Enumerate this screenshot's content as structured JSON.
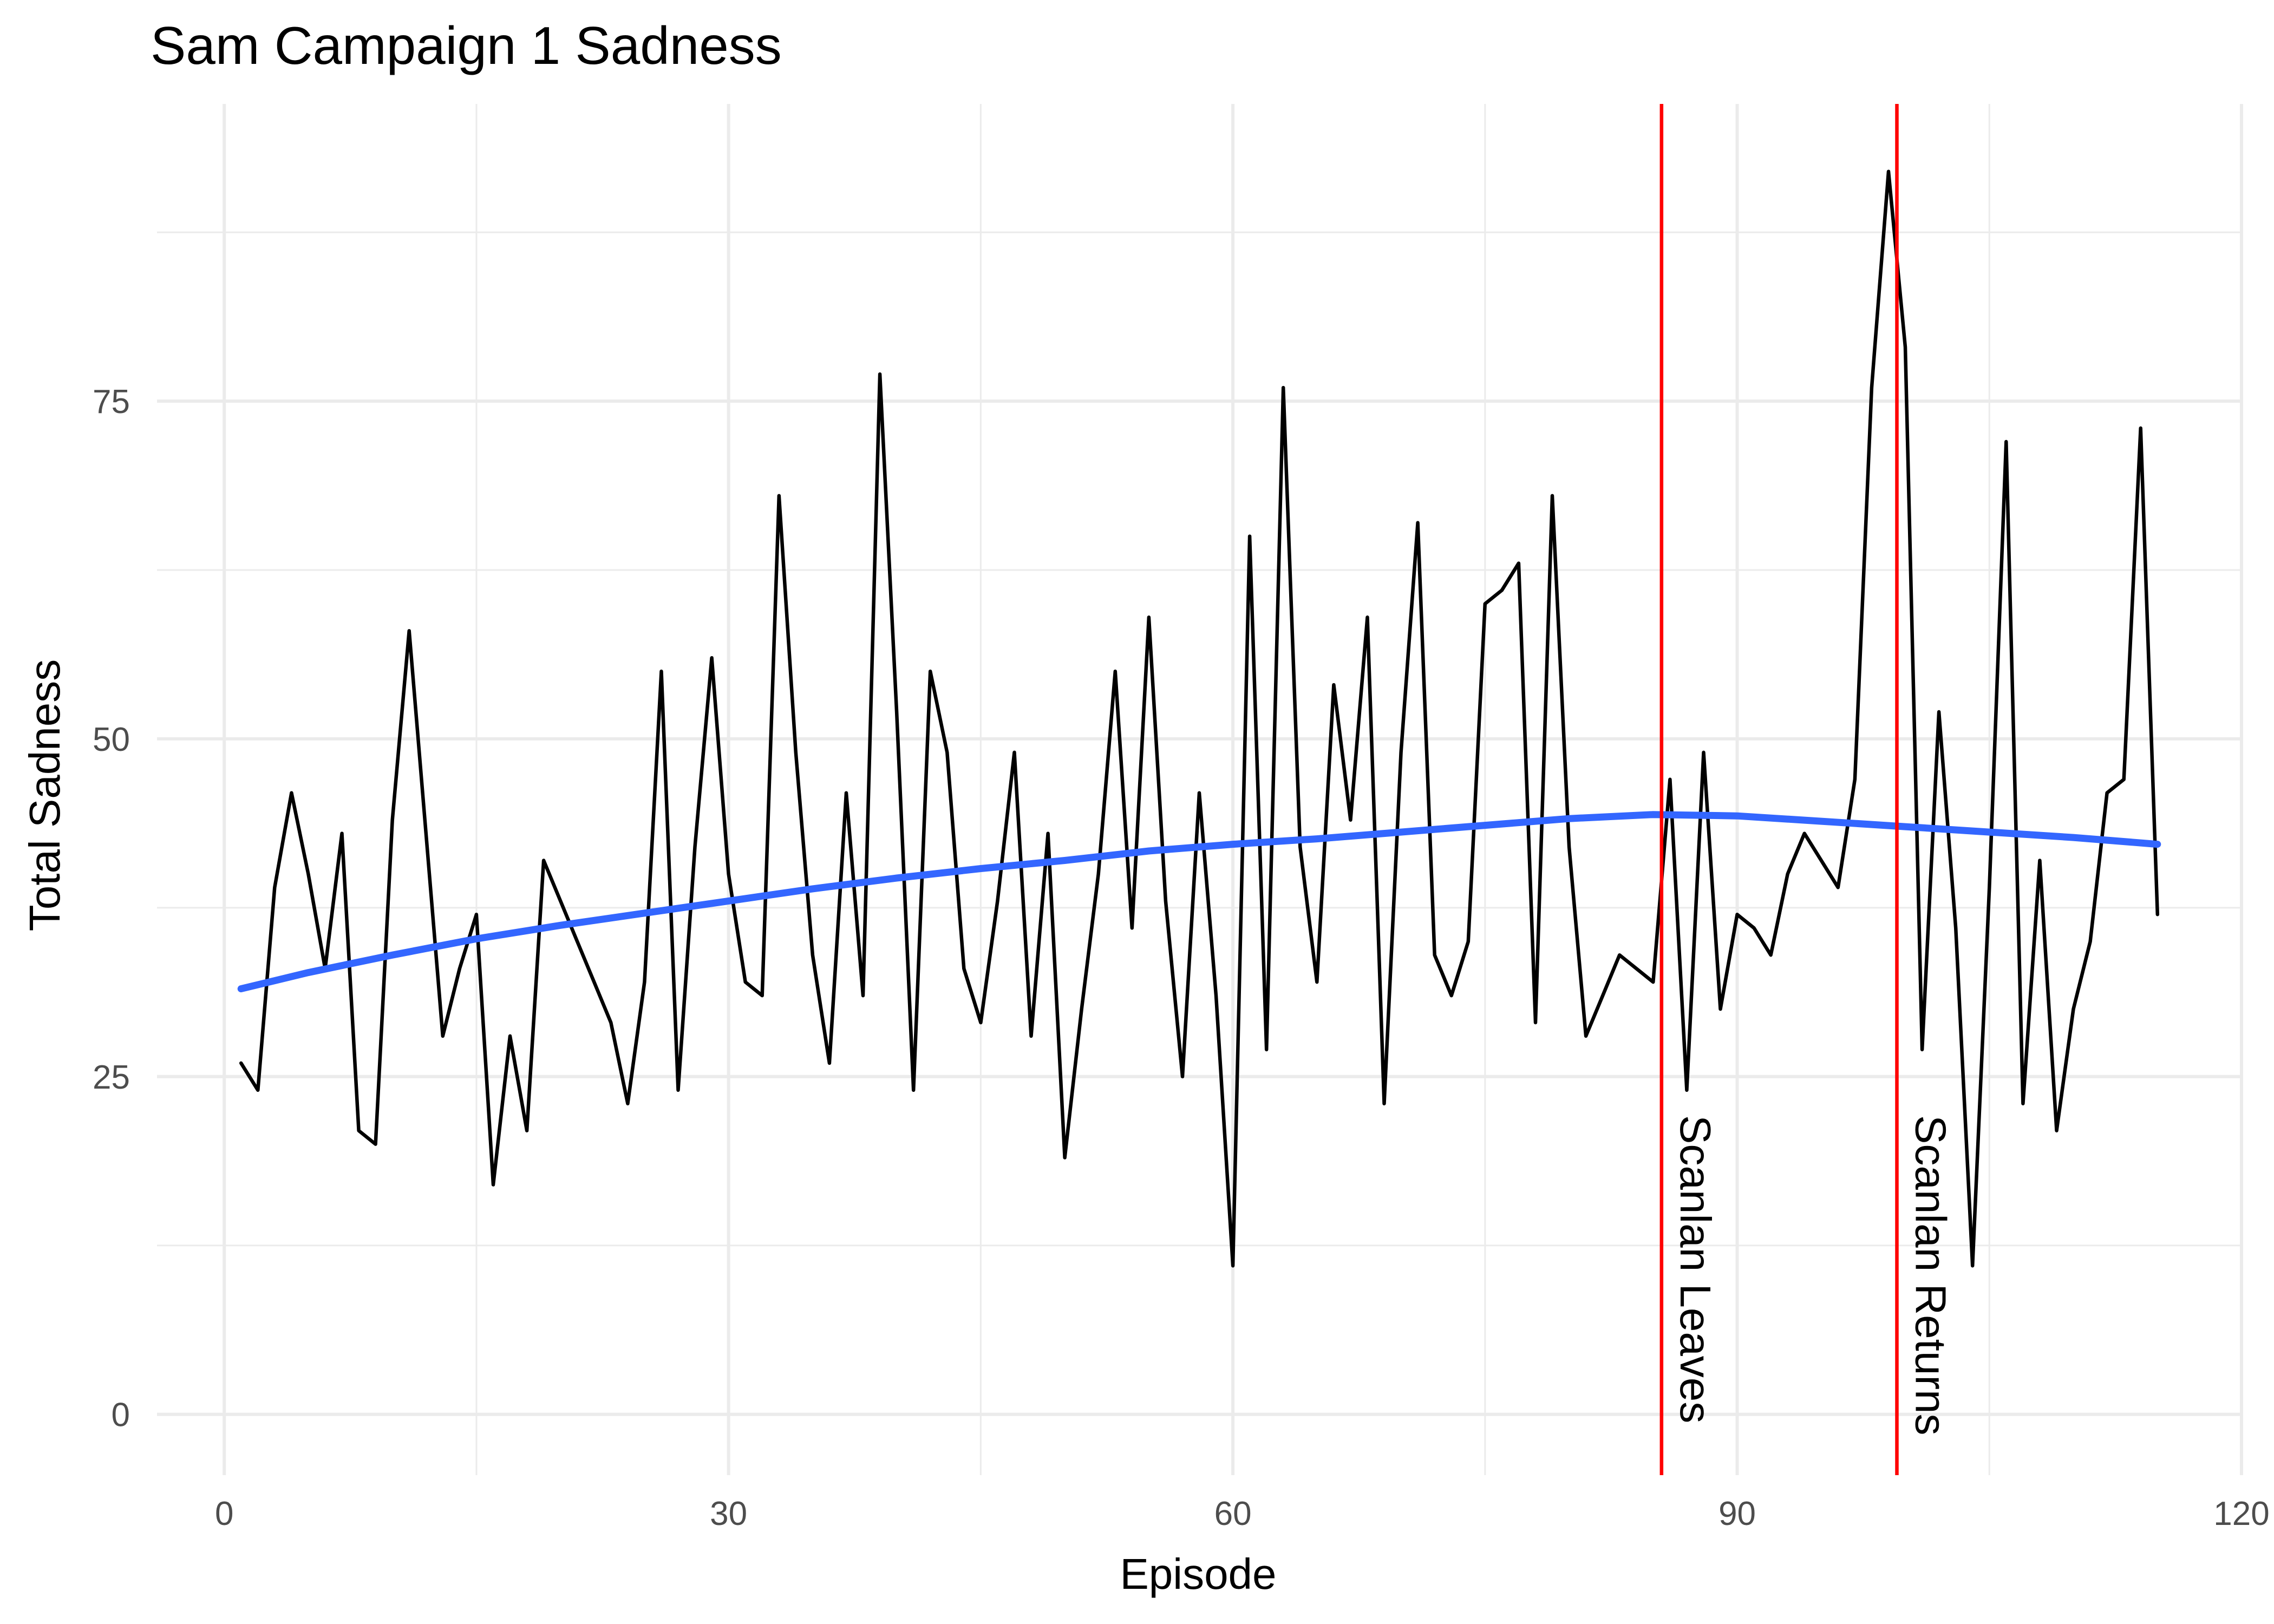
{
  "chart_data": {
    "type": "line",
    "title": "Sam Campaign 1 Sadness",
    "xlabel": "Episode",
    "ylabel": "Total Sadness",
    "xlim": [
      -4,
      120
    ],
    "ylim": [
      -4.5,
      97
    ],
    "x_ticks": [
      0,
      30,
      60,
      90,
      120
    ],
    "y_ticks": [
      0,
      25,
      50,
      75
    ],
    "x_tick_labels": [
      "0",
      "30",
      "60",
      "90",
      "120"
    ],
    "y_tick_labels": [
      "0",
      "25",
      "50",
      "75"
    ],
    "grid": true,
    "series": [
      {
        "style": "line",
        "color": "#000000",
        "x": [
          1,
          2,
          3,
          4,
          5,
          6,
          7,
          8,
          9,
          10,
          11,
          12,
          13,
          14,
          15,
          16,
          17,
          18,
          19,
          20,
          21,
          22,
          23,
          24,
          25,
          26,
          27,
          28,
          29,
          30,
          31,
          32,
          33,
          34,
          35,
          36,
          37,
          38,
          39,
          40,
          41,
          42,
          43,
          44,
          45,
          46,
          47,
          48,
          49,
          50,
          51,
          52,
          53,
          54,
          55,
          56,
          57,
          58,
          59,
          60,
          61,
          62,
          63,
          64,
          65,
          66,
          67,
          68,
          69,
          70,
          71,
          72,
          73,
          74,
          75,
          76,
          77,
          78,
          79,
          80,
          81,
          82,
          83,
          84,
          85,
          86,
          87,
          88,
          89,
          90,
          91,
          92,
          93,
          94,
          95,
          96,
          97,
          98,
          99,
          100,
          101,
          102,
          103,
          104,
          105,
          106,
          107,
          108,
          109,
          110,
          111,
          112,
          113,
          114,
          115
        ],
        "y": [
          26,
          24,
          39,
          46,
          40,
          33,
          43,
          21,
          20,
          44,
          58,
          43,
          28,
          33,
          37,
          17,
          28,
          21,
          41,
          38,
          35,
          32,
          29,
          23,
          32,
          55,
          24,
          42,
          56,
          40,
          32,
          31,
          68,
          49,
          34,
          26,
          46,
          31,
          77,
          52,
          24,
          55,
          49,
          33,
          29,
          38,
          49,
          28,
          43,
          19,
          30,
          40,
          55,
          36,
          59,
          38,
          25,
          46,
          31,
          11,
          65,
          27,
          76,
          42,
          32,
          54,
          44,
          59,
          23,
          49,
          66,
          34,
          31,
          35,
          60,
          61,
          63,
          29,
          68,
          42,
          28,
          31,
          34,
          33,
          32,
          47,
          24,
          49,
          30,
          37,
          36,
          34,
          40,
          43,
          41,
          39,
          47,
          76,
          92,
          79,
          27,
          52,
          36,
          11,
          39,
          72,
          23,
          41,
          21,
          30,
          35,
          46,
          47,
          73,
          37
        ]
      },
      {
        "style": "smooth",
        "color": "#3366ff",
        "x": [
          1,
          5,
          10,
          15,
          20,
          25,
          30,
          35,
          40,
          45,
          50,
          55,
          60,
          65,
          70,
          75,
          80,
          85,
          90,
          95,
          100,
          105,
          110,
          115
        ],
        "y": [
          31.5,
          32.7,
          34.0,
          35.2,
          36.2,
          37.1,
          38.0,
          38.9,
          39.7,
          40.4,
          41.0,
          41.7,
          42.2,
          42.6,
          43.1,
          43.6,
          44.1,
          44.4,
          44.3,
          43.9,
          43.5,
          43.1,
          42.7,
          42.2
        ]
      }
    ],
    "vlines": [
      {
        "x": 85.5,
        "color": "#ff0000",
        "label": "Scanlan Leaves"
      },
      {
        "x": 99.5,
        "color": "#ff0000",
        "label": "Scanlan Returns"
      }
    ]
  }
}
